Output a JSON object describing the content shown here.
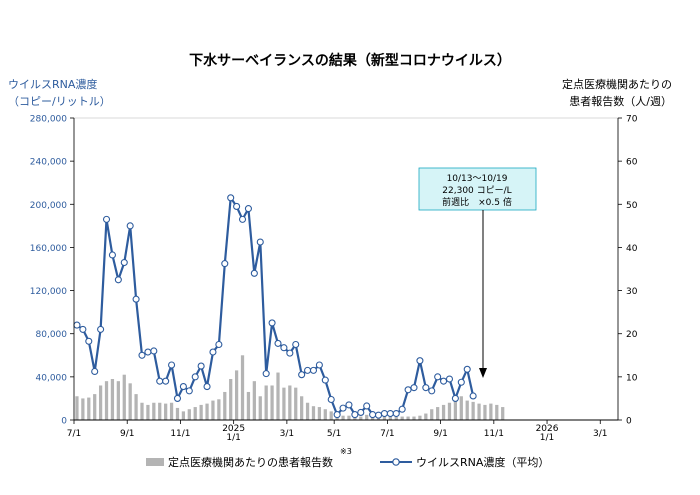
{
  "title": "下水サーベイランスの結果（新型コロナウイルス）",
  "left_axis_title": [
    "ウイルスRNA濃度",
    "（コピー/リットル）"
  ],
  "right_axis_title": [
    "定点医療機関あたりの",
    "患者報告数（人/週）"
  ],
  "annotation": [
    "10/13～10/19",
    "22,300 コピー/L",
    "前週比　×0.5 倍"
  ],
  "footnote_mark": "※3",
  "legend": {
    "bars": "定点医療機関あたりの患者報告数",
    "line": "ウイルスRNA濃度（平均）"
  },
  "colors": {
    "line": "#2e5c9e",
    "bars": "#b4b4b4",
    "annotation_bg": "#d6f4f7"
  },
  "chart_data": {
    "type": "bar+line",
    "ylim_left": [
      0,
      280000
    ],
    "ylim_right": [
      0,
      70
    ],
    "left_ticks": [
      "0",
      "40,000",
      "80,000",
      "120,000",
      "160,000",
      "200,000",
      "240,000",
      "280,000"
    ],
    "right_ticks": [
      "0",
      "10",
      "20",
      "30",
      "40",
      "50",
      "60",
      "70"
    ],
    "x_tick_labels": [
      {
        "week": 0,
        "label": [
          "7/1"
        ]
      },
      {
        "week": 9,
        "label": [
          "9/1"
        ]
      },
      {
        "week": 18,
        "label": [
          "11/1"
        ]
      },
      {
        "week": 27,
        "label": [
          "2025",
          "1/1"
        ]
      },
      {
        "week": 36,
        "label": [
          "3/1"
        ]
      },
      {
        "week": 44,
        "label": [
          "5/1"
        ]
      },
      {
        "week": 53,
        "label": [
          "7/1"
        ]
      },
      {
        "week": 62,
        "label": [
          "9/1"
        ]
      },
      {
        "week": 71,
        "label": [
          "11/1"
        ]
      },
      {
        "week": 80,
        "label": [
          "2026",
          "1/1"
        ]
      },
      {
        "week": 89,
        "label": [
          "3/1"
        ]
      }
    ],
    "total_weeks": 92,
    "series": [
      {
        "name": "定点医療機関あたりの患者報告数",
        "kind": "bar",
        "axis": "right",
        "values": [
          5.5,
          5,
          5.2,
          6,
          8,
          9,
          9.5,
          9,
          10.5,
          8.5,
          6,
          4,
          3.5,
          4,
          4,
          3.8,
          4,
          2.8,
          2,
          2.5,
          3,
          3.5,
          3.8,
          4.5,
          4.8,
          6.5,
          9.5,
          11.5,
          15,
          6.5,
          9,
          5.5,
          8,
          8,
          11,
          7.5,
          8,
          7.5,
          5.5,
          4,
          3.2,
          3,
          2.5,
          2,
          1.5,
          1,
          1,
          0.8,
          0.8,
          1.2,
          0.8,
          0.7,
          1,
          0.9,
          0.7,
          0.8,
          0.8,
          0.8,
          1,
          1.5,
          2.5,
          3,
          3.5,
          4,
          5,
          5.5,
          4.5,
          4.2,
          3.8,
          3.5,
          3.8,
          3.5,
          3
        ]
      },
      {
        "name": "ウイルスRNA濃度（平均）",
        "kind": "line",
        "axis": "left",
        "values": [
          88000,
          84000,
          73000,
          45000,
          84000,
          186000,
          153000,
          130000,
          146000,
          180000,
          112000,
          60000,
          63000,
          64000,
          36000,
          36000,
          51000,
          20000,
          31000,
          27000,
          40000,
          50000,
          31000,
          63000,
          70000,
          145000,
          206000,
          198000,
          186000,
          196000,
          136000,
          165000,
          43000,
          90000,
          71000,
          67000,
          62000,
          70000,
          42000,
          46000,
          46000,
          51000,
          37000,
          19000,
          5000,
          11000,
          14000,
          5000,
          7000,
          13000,
          5000,
          4500,
          6000,
          6000,
          6000,
          10000,
          28000,
          30000,
          55000,
          30000,
          27000,
          40000,
          36000,
          38000,
          20000,
          35000,
          47000,
          22300
        ]
      }
    ]
  }
}
